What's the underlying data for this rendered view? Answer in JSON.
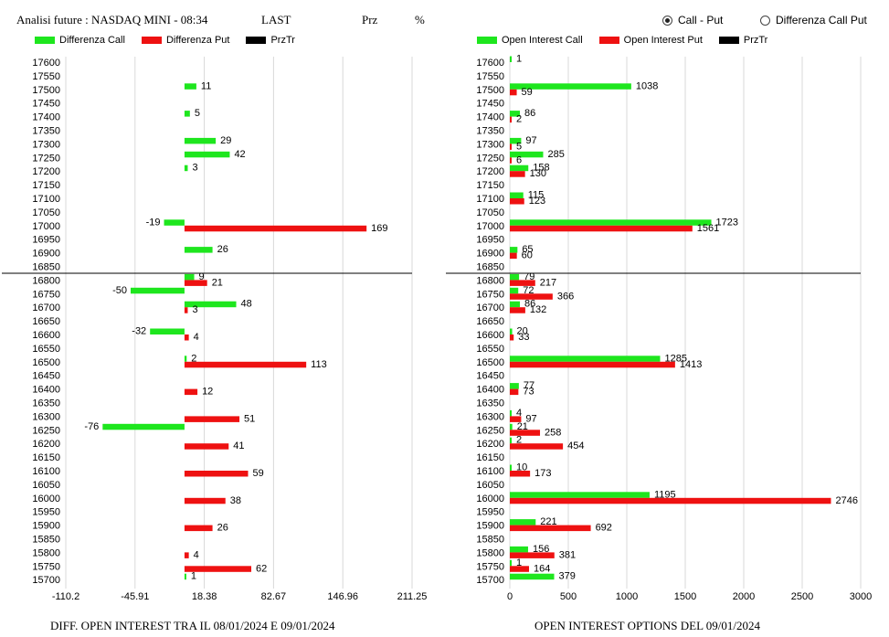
{
  "header": {
    "title": "Analisi future : NASDAQ MINI - 08:34",
    "col_last": "LAST",
    "col_prz": "Prz",
    "col_pct": "%"
  },
  "controls": {
    "radio_call_put": "Call - Put",
    "radio_diff": "Differenza Call Put",
    "selected": "Call - Put"
  },
  "colors": {
    "call": "#1ee61e",
    "put": "#ee1111",
    "prztr": "#000000"
  },
  "chart_data": [
    {
      "type": "bar",
      "orientation": "horizontal",
      "title": "DIFF. OPEN INTEREST TRA IL 08/01/2024 E 09/01/2024",
      "legend": [
        "Differenza Call",
        "Differenza Put",
        "PrzTr"
      ],
      "xlim": [
        -110.2,
        211.25
      ],
      "xticks": [
        "-110.2",
        "-45.91",
        "18.38",
        "82.67",
        "146.96",
        "211.25"
      ],
      "price_line": 16825,
      "strikes": [
        17600,
        17550,
        17500,
        17450,
        17400,
        17350,
        17300,
        17250,
        17200,
        17150,
        17100,
        17050,
        17000,
        16950,
        16900,
        16850,
        16800,
        16750,
        16700,
        16650,
        16600,
        16550,
        16500,
        16450,
        16400,
        16350,
        16300,
        16250,
        16200,
        16150,
        16100,
        16050,
        16000,
        15950,
        15900,
        15850,
        15800,
        15750,
        15700
      ],
      "series": [
        {
          "name": "Differenza Call",
          "values": [
            null,
            null,
            11,
            null,
            5,
            null,
            29,
            42,
            3,
            null,
            null,
            null,
            -19,
            null,
            26,
            null,
            9,
            -50,
            48,
            null,
            -32,
            null,
            2,
            null,
            null,
            null,
            null,
            -76,
            null,
            null,
            null,
            null,
            null,
            null,
            null,
            null,
            null,
            null,
            1
          ]
        },
        {
          "name": "Differenza Put",
          "values": [
            null,
            null,
            null,
            null,
            null,
            null,
            null,
            null,
            null,
            null,
            null,
            null,
            169,
            null,
            null,
            null,
            21,
            null,
            3,
            null,
            4,
            null,
            113,
            null,
            12,
            null,
            51,
            null,
            41,
            null,
            59,
            null,
            38,
            null,
            26,
            null,
            4,
            62,
            null
          ]
        }
      ]
    },
    {
      "type": "bar",
      "orientation": "horizontal",
      "title": "OPEN INTEREST OPTIONS DEL 09/01/2024",
      "legend": [
        "Open Interest Call",
        "Open Interest Put",
        "PrzTr"
      ],
      "xlim": [
        0,
        3000
      ],
      "xticks": [
        "0",
        "500",
        "1000",
        "1500",
        "2000",
        "2500",
        "3000"
      ],
      "price_line": 16825,
      "strikes": [
        17600,
        17550,
        17500,
        17450,
        17400,
        17350,
        17300,
        17250,
        17200,
        17150,
        17100,
        17050,
        17000,
        16950,
        16900,
        16850,
        16800,
        16750,
        16700,
        16650,
        16600,
        16550,
        16500,
        16450,
        16400,
        16350,
        16300,
        16250,
        16200,
        16150,
        16100,
        16050,
        16000,
        15950,
        15900,
        15850,
        15800,
        15750,
        15700
      ],
      "series": [
        {
          "name": "Open Interest Call",
          "values": [
            1,
            null,
            1038,
            null,
            86,
            null,
            97,
            285,
            158,
            null,
            115,
            null,
            1723,
            null,
            65,
            null,
            79,
            72,
            86,
            null,
            20,
            null,
            1285,
            null,
            77,
            null,
            4,
            21,
            2,
            null,
            10,
            null,
            1195,
            null,
            221,
            null,
            156,
            1,
            379
          ]
        },
        {
          "name": "Open Interest Put",
          "values": [
            null,
            null,
            59,
            null,
            2,
            null,
            5,
            6,
            130,
            null,
            123,
            null,
            1561,
            null,
            60,
            null,
            217,
            366,
            132,
            null,
            33,
            null,
            1413,
            null,
            73,
            null,
            97,
            258,
            454,
            null,
            173,
            null,
            2746,
            null,
            692,
            null,
            381,
            164,
            null
          ]
        }
      ]
    }
  ]
}
